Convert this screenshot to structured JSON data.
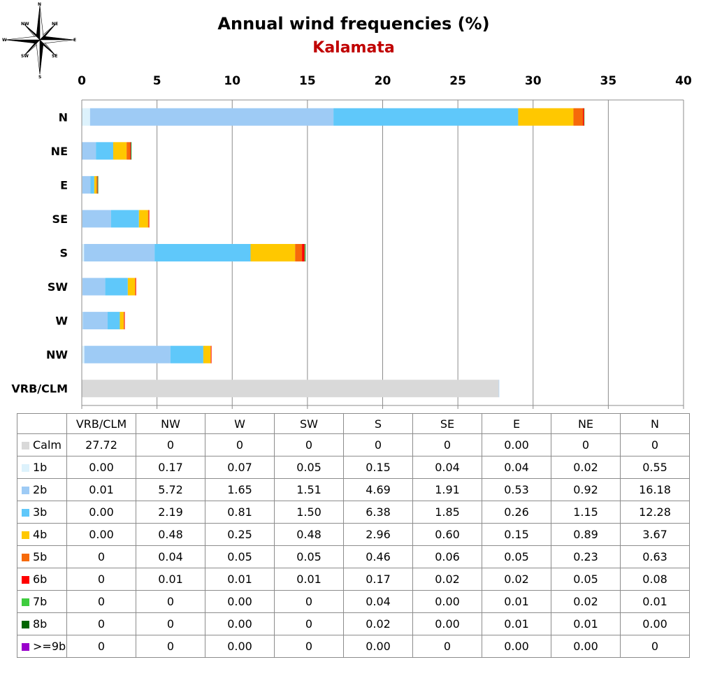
{
  "chart_data": {
    "type": "bar",
    "orientation": "horizontal",
    "stacked": true,
    "title": "Annual wind frequencies (%)",
    "subtitle": "Kalamata",
    "x_axis_position": "top",
    "xlim": [
      0,
      40
    ],
    "xticks": [
      0,
      5,
      10,
      15,
      20,
      25,
      30,
      35,
      40
    ],
    "grid": true,
    "categories": [
      "N",
      "NE",
      "E",
      "SE",
      "S",
      "SW",
      "W",
      "NW",
      "VRB/CLM"
    ],
    "table_columns": [
      "VRB/CLM",
      "NW",
      "W",
      "SW",
      "S",
      "SE",
      "E",
      "NE",
      "N"
    ],
    "series": [
      {
        "name": "Calm",
        "color": "#d9d9d9",
        "values": {
          "VRB/CLM": "27.72",
          "NW": "0",
          "W": "0",
          "SW": "0",
          "S": "0",
          "SE": "0",
          "E": "0.00",
          "NE": "0",
          "N": "0"
        }
      },
      {
        "name": "1b",
        "color": "#ddf2fc",
        "values": {
          "VRB/CLM": "0.00",
          "NW": "0.17",
          "W": "0.07",
          "SW": "0.05",
          "S": "0.15",
          "SE": "0.04",
          "E": "0.04",
          "NE": "0.02",
          "N": "0.55"
        }
      },
      {
        "name": "2b",
        "color": "#9ecbf5",
        "values": {
          "VRB/CLM": "0.01",
          "NW": "5.72",
          "W": "1.65",
          "SW": "1.51",
          "S": "4.69",
          "SE": "1.91",
          "E": "0.53",
          "NE": "0.92",
          "N": "16.18"
        }
      },
      {
        "name": "3b",
        "color": "#5fc8fa",
        "values": {
          "VRB/CLM": "0.00",
          "NW": "2.19",
          "W": "0.81",
          "SW": "1.50",
          "S": "6.38",
          "SE": "1.85",
          "E": "0.26",
          "NE": "1.15",
          "N": "12.28"
        }
      },
      {
        "name": "4b",
        "color": "#ffc800",
        "values": {
          "VRB/CLM": "0.00",
          "NW": "0.48",
          "W": "0.25",
          "SW": "0.48",
          "S": "2.96",
          "SE": "0.60",
          "E": "0.15",
          "NE": "0.89",
          "N": "3.67"
        }
      },
      {
        "name": "5b",
        "color": "#f66a0a",
        "values": {
          "VRB/CLM": "0",
          "NW": "0.04",
          "W": "0.05",
          "SW": "0.05",
          "S": "0.46",
          "SE": "0.06",
          "E": "0.05",
          "NE": "0.23",
          "N": "0.63"
        }
      },
      {
        "name": "6b",
        "color": "#ff0000",
        "values": {
          "VRB/CLM": "0",
          "NW": "0.01",
          "W": "0.01",
          "SW": "0.01",
          "S": "0.17",
          "SE": "0.02",
          "E": "0.02",
          "NE": "0.05",
          "N": "0.08"
        }
      },
      {
        "name": "7b",
        "color": "#3ecc3e",
        "values": {
          "VRB/CLM": "0",
          "NW": "0",
          "W": "0.00",
          "SW": "0",
          "S": "0.04",
          "SE": "0.00",
          "E": "0.01",
          "NE": "0.02",
          "N": "0.01"
        }
      },
      {
        "name": "8b",
        "color": "#006600",
        "values": {
          "VRB/CLM": "0",
          "NW": "0",
          "W": "0.00",
          "SW": "0",
          "S": "0.02",
          "SE": "0.00",
          "E": "0.01",
          "NE": "0.01",
          "N": "0.00"
        }
      },
      {
        "name": ">=9b",
        "color": "#9900cc",
        "values": {
          "VRB/CLM": "0",
          "NW": "0",
          "W": "0.00",
          "SW": "0",
          "S": "0.00",
          "SE": "0",
          "E": "0.00",
          "NE": "0.00",
          "N": "0"
        }
      }
    ]
  },
  "compass": {
    "labels": [
      "N",
      "NE",
      "E",
      "SE",
      "S",
      "SW",
      "W",
      "NW"
    ]
  }
}
